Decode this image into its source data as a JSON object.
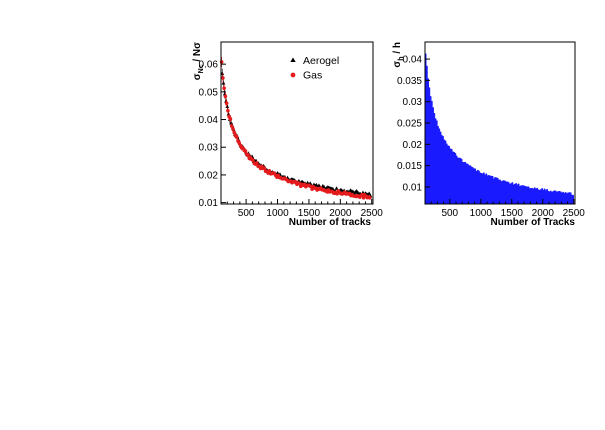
{
  "colors": {
    "aerogel": "#000000",
    "gas": "#e41a1c",
    "histogram": "#1a1aff",
    "axis": "#000000"
  },
  "chart_data": [
    {
      "type": "scatter",
      "title": "",
      "xlabel": "Number of tracks",
      "ylabel_main": "σ",
      "ylabel_sub": "Nc",
      "ylabel_rest": " / Nσ",
      "xlim": [
        100,
        2520
      ],
      "ylim": [
        0.0095,
        0.068
      ],
      "xticks": [
        500,
        1000,
        1500,
        2000,
        2500
      ],
      "yticks": [
        0.01,
        0.02,
        0.03,
        0.04,
        0.05,
        0.06
      ],
      "xtick_labels": [
        "500",
        "1000",
        "1500",
        "2000",
        "2500"
      ],
      "ytick_labels": [
        "0.01",
        "0.02",
        "0.03",
        "0.04",
        "0.05",
        "0.06"
      ],
      "legend_position": "top-right",
      "series": [
        {
          "name": "Aerogel",
          "marker": "triangle",
          "color": "#000000",
          "model": {
            "a": 0.62,
            "b": 0.0005,
            "start": 120,
            "step": 20,
            "end": 2480
          }
        },
        {
          "name": "Gas",
          "marker": "circle",
          "color": "#e41a1c",
          "model": {
            "a": 0.64,
            "b": -0.0008,
            "start": 110,
            "step": 20,
            "end": 2480
          }
        }
      ]
    },
    {
      "type": "bar",
      "title": "",
      "xlabel": "Number of Tracks",
      "ylabel_main": "σ",
      "ylabel_sub": "h",
      "ylabel_rest": " / h",
      "xlim": [
        100,
        2520
      ],
      "ylim": [
        0.006,
        0.044
      ],
      "xticks": [
        500,
        1000,
        1500,
        2000,
        2500
      ],
      "yticks": [
        0.01,
        0.015,
        0.02,
        0.025,
        0.03,
        0.035,
        0.04
      ],
      "xtick_labels": [
        "500",
        "1000",
        "1500",
        "2000",
        "2500"
      ],
      "ytick_labels": [
        "0.01",
        "0.015",
        "0.02",
        "0.025",
        "0.03",
        "0.035",
        "0.04"
      ],
      "series": [
        {
          "name": "",
          "color": "#1a1aff",
          "model": {
            "a": 0.44,
            "b": -0.0005,
            "start": 100,
            "step": 20,
            "end": 2500
          }
        }
      ]
    }
  ]
}
